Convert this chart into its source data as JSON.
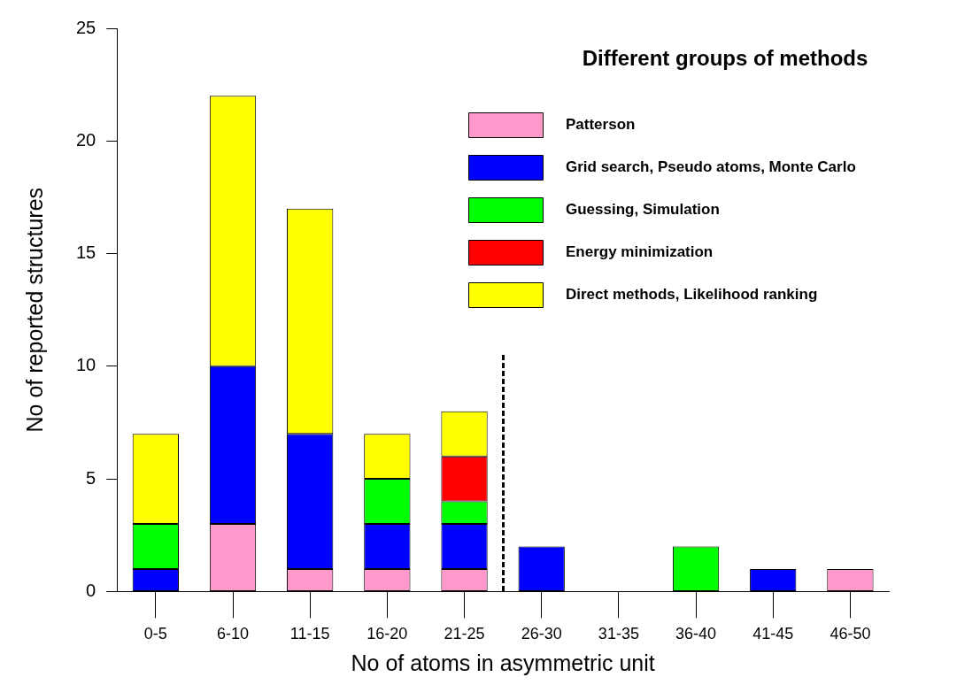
{
  "chart_data": {
    "type": "bar",
    "stacked": true,
    "xlabel": "No of atoms in asymmetric unit",
    "ylabel": "No of reported structures",
    "legend_title": "Different groups of methods",
    "legend": "top right",
    "grid": false,
    "categories": [
      "0-5",
      "6-10",
      "11-15",
      "16-20",
      "21-25",
      "26-30",
      "31-35",
      "36-40",
      "41-45",
      "46-50"
    ],
    "ylim": [
      0,
      25
    ],
    "yticks": [
      0,
      5,
      10,
      15,
      20,
      25
    ],
    "series": [
      {
        "name": "Patterson",
        "color": "#ff99cc",
        "values": [
          0,
          3,
          1,
          1,
          1,
          0,
          0,
          0,
          0,
          1
        ]
      },
      {
        "name": "Grid search, Pseudo atoms, Monte Carlo",
        "color": "#0000ff",
        "values": [
          1,
          7,
          6,
          2,
          2,
          2,
          0,
          0,
          1,
          0
        ]
      },
      {
        "name": "Guessing, Simulation",
        "color": "#00ff00",
        "values": [
          2,
          0,
          0,
          2,
          1,
          0,
          0,
          2,
          0,
          0
        ]
      },
      {
        "name": "Energy minimization",
        "color": "#ff0000",
        "values": [
          0,
          0,
          0,
          0,
          2,
          0,
          0,
          0,
          0,
          0
        ]
      },
      {
        "name": "Direct methods, Likelihood ranking",
        "color": "#ffff00",
        "values": [
          4,
          12,
          10,
          2,
          2,
          0,
          0,
          0,
          0,
          0
        ]
      }
    ]
  }
}
